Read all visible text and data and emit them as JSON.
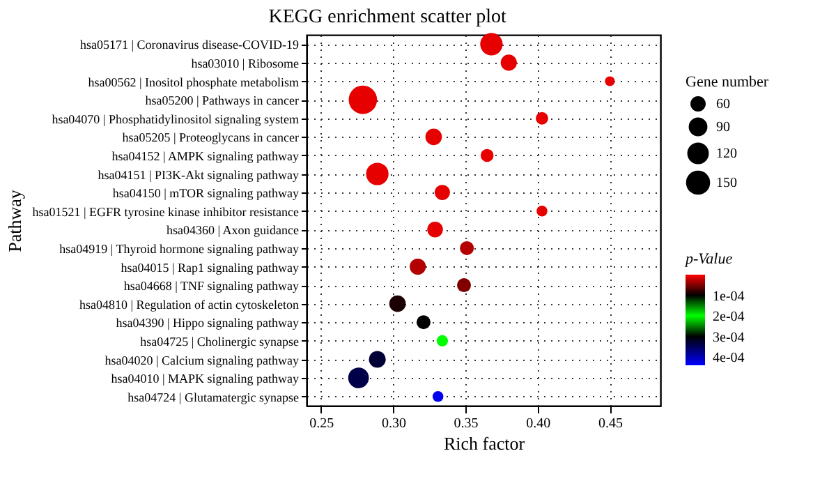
{
  "chart_data": {
    "type": "bubble",
    "title": "KEGG enrichment scatter plot",
    "xlabel": "Rich factor",
    "ylabel": "Pathway",
    "legend_title": "Gene number",
    "clabel": "p-Value",
    "categories": [
      "hsa05171 | Coronavirus disease-COVID-19",
      "hsa03010 | Ribosome",
      "hsa00562 | Inositol phosphate metabolism",
      "hsa05200 | Pathways in cancer",
      "hsa04070 | Phosphatidylinositol signaling system",
      "hsa05205 | Proteoglycans in cancer",
      "hsa04152 | AMPK signaling pathway",
      "hsa04151 | PI3K-Akt signaling pathway",
      "hsa04150 | mTOR signaling pathway",
      "hsa01521 | EGFR tyrosine kinase inhibitor resistance",
      "hsa04360 | Axon guidance",
      "hsa04919 | Thyroid hormone signaling pathway",
      "hsa04015 | Rap1 signaling pathway",
      "hsa04668 | TNF signaling pathway",
      "hsa04810 | Regulation of actin cytoskeleton",
      "hsa04390 | Hippo signaling pathway",
      "hsa04725 | Cholinergic synapse",
      "hsa04020 | Calcium signaling pathway",
      "hsa04010 | MAPK signaling pathway",
      "hsa04724 | Glutamatergic synapse"
    ],
    "values": [
      0.368,
      0.38,
      0.45,
      0.279,
      0.403,
      0.328,
      0.365,
      0.289,
      0.334,
      0.403,
      0.329,
      0.351,
      0.317,
      0.349,
      0.303,
      0.321,
      0.334,
      0.289,
      0.276,
      0.331
    ],
    "sizes": [
      130,
      67,
      25,
      207,
      40,
      70,
      43,
      130,
      60,
      30,
      63,
      50,
      67,
      50,
      70,
      50,
      33,
      73,
      110,
      30
    ],
    "cvalues": [
      1e-05,
      1e-05,
      1e-05,
      1e-05,
      1e-05,
      1e-05,
      1e-05,
      1e-05,
      1e-05,
      1e-05,
      1e-05,
      3e-05,
      3e-05,
      5e-05,
      9e-05,
      0.0001,
      0.0002,
      0.00033,
      0.00034,
      0.00043
    ],
    "size_legend": [
      60,
      90,
      120,
      150
    ],
    "xlim": [
      0.24,
      0.485
    ],
    "xticks": [
      0.25,
      {
        "value": 0.3,
        "label": "0.30"
      },
      0.35,
      {
        "value": 0.4,
        "label": "0.40"
      },
      0.45
    ],
    "clim": [
      0,
      0.00044
    ],
    "cticks": [
      {
        "value": 0.0001,
        "label": "1e-04"
      },
      {
        "value": 0.0002,
        "label": "2e-04"
      },
      {
        "value": 0.0003,
        "label": "3e-04"
      },
      {
        "value": 0.0004,
        "label": "4e-04"
      }
    ],
    "orientation": "horizontal",
    "grid": true,
    "marker": "circle"
  }
}
